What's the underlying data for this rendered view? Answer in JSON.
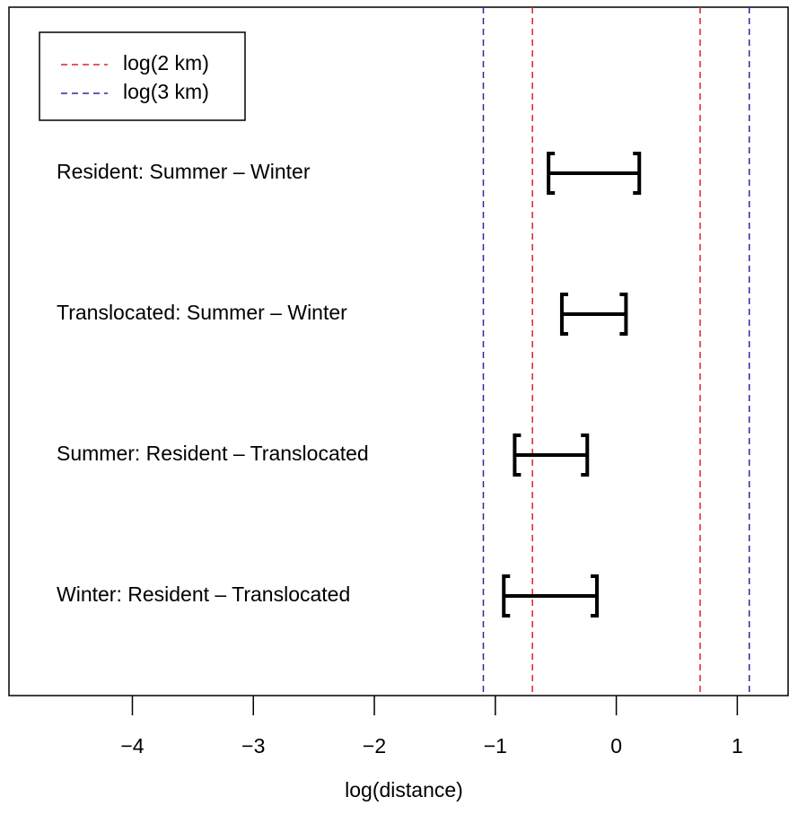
{
  "chart_data": {
    "type": "interval",
    "xlabel": "log(distance)",
    "categories": [
      "Resident: Summer – Winter",
      "Translocated: Summer – Winter",
      "Summer: Resident – Translocated",
      "Winter: Resident – Translocated"
    ],
    "low": [
      -0.56,
      -0.45,
      -0.84,
      -0.93
    ],
    "high": [
      0.19,
      0.08,
      -0.24,
      -0.16
    ],
    "color": "#000000",
    "xlim": [
      -5.02,
      1.42
    ],
    "xticks": [
      {
        "value": -4,
        "label": "−4"
      },
      {
        "value": -3,
        "label": "−3"
      },
      {
        "value": -2,
        "label": "−2"
      },
      {
        "value": -1,
        "label": "−1"
      },
      0,
      1
    ],
    "reference_lines": [
      {
        "name": "log(2 km)",
        "color": "#e0202a",
        "values": [
          -0.693,
          0.693
        ]
      },
      {
        "name": "log(3 km)",
        "color": "#2a2aa0",
        "values": [
          -1.099,
          1.099
        ]
      }
    ],
    "legend": "top-left"
  }
}
